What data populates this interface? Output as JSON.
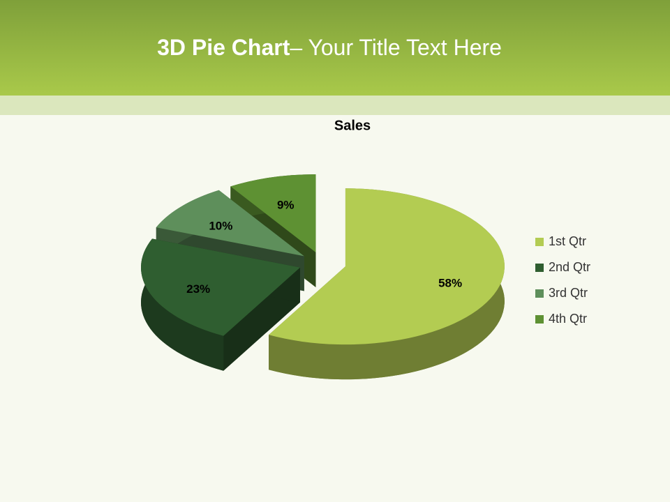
{
  "slide": {
    "title_bold": "3D Pie Chart",
    "title_rest": "– Your Title Text Here"
  },
  "chart_data": {
    "type": "pie",
    "title": "Sales",
    "categories": [
      "1st Qtr",
      "2nd Qtr",
      "3rd Qtr",
      "4th Qtr"
    ],
    "values": [
      58,
      23,
      10,
      9
    ],
    "value_labels": [
      "58%",
      "23%",
      "10%",
      "9%"
    ],
    "colors": [
      "#b3cc52",
      "#2f5e30",
      "#5e8f5b",
      "#5e9133"
    ],
    "legend": "right"
  }
}
